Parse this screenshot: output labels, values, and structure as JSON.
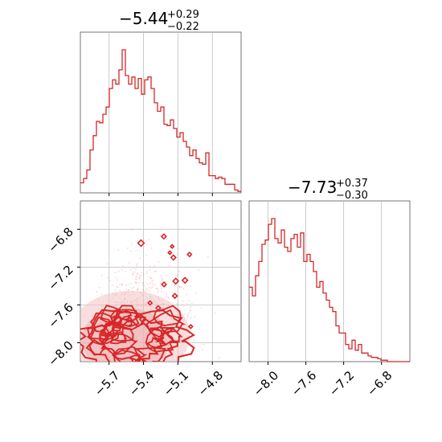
{
  "chart_data": [
    {
      "type": "histogram",
      "panel": "top-left",
      "title": {
        "median": "−5.44",
        "upper": "+0.29",
        "lower": "−0.22"
      },
      "xlim": [
        -5.95,
        -4.55
      ],
      "xticks": [
        -5.7,
        -5.4,
        -5.1,
        -4.8
      ],
      "grid": true,
      "color": "#d62728",
      "bin_edges_start": -5.95,
      "bin_width": 0.028,
      "heights": [
        0.07,
        0.1,
        0.16,
        0.3,
        0.4,
        0.5,
        0.49,
        0.55,
        0.6,
        0.73,
        0.79,
        0.76,
        0.86,
        1.0,
        0.82,
        0.76,
        0.81,
        0.73,
        0.8,
        0.69,
        0.79,
        0.81,
        0.73,
        0.63,
        0.57,
        0.6,
        0.48,
        0.47,
        0.51,
        0.45,
        0.39,
        0.42,
        0.36,
        0.32,
        0.26,
        0.3,
        0.24,
        0.21,
        0.2,
        0.28,
        0.12,
        0.12,
        0.1,
        0.11,
        0.1,
        0.06,
        0.06,
        0.06,
        0.02,
        0.01
      ]
    },
    {
      "type": "histogram",
      "panel": "bottom-right",
      "title": {
        "median": "−7.73",
        "upper": "+0.37",
        "lower": "−0.30"
      },
      "xlim": [
        -8.2,
        -6.5
      ],
      "xticks": [
        -8.0,
        -7.6,
        -7.2,
        -6.8
      ],
      "grid": true,
      "color": "#d62728",
      "bin_edges_start": -8.2,
      "bin_width": 0.034,
      "heights": [
        0.52,
        0.46,
        0.6,
        0.7,
        0.82,
        0.85,
        0.96,
        1.0,
        0.86,
        0.83,
        0.92,
        0.8,
        0.77,
        0.86,
        0.89,
        0.8,
        0.9,
        0.7,
        0.75,
        0.7,
        0.63,
        0.52,
        0.56,
        0.48,
        0.43,
        0.38,
        0.35,
        0.25,
        0.2,
        0.2,
        0.12,
        0.09,
        0.15,
        0.08,
        0.12,
        0.06,
        0.06,
        0.04,
        0.03,
        0.03,
        0.02,
        0.01,
        0.01,
        0.0,
        0.0,
        0.0,
        0.0,
        0.0,
        0.0,
        0.0
      ]
    },
    {
      "type": "contour",
      "panel": "bottom-left",
      "xlim": [
        -5.95,
        -4.55
      ],
      "ylim": [
        -8.2,
        -6.5
      ],
      "xticks": [
        -5.7,
        -5.4,
        -5.1,
        -4.8
      ],
      "yticks": [
        -8.0,
        -7.6,
        -7.2,
        -6.8
      ],
      "grid": true,
      "color": "#d62728",
      "density_center": [
        -5.52,
        -7.85
      ],
      "density_spread": [
        0.2,
        0.25
      ],
      "levels": 3
    }
  ]
}
